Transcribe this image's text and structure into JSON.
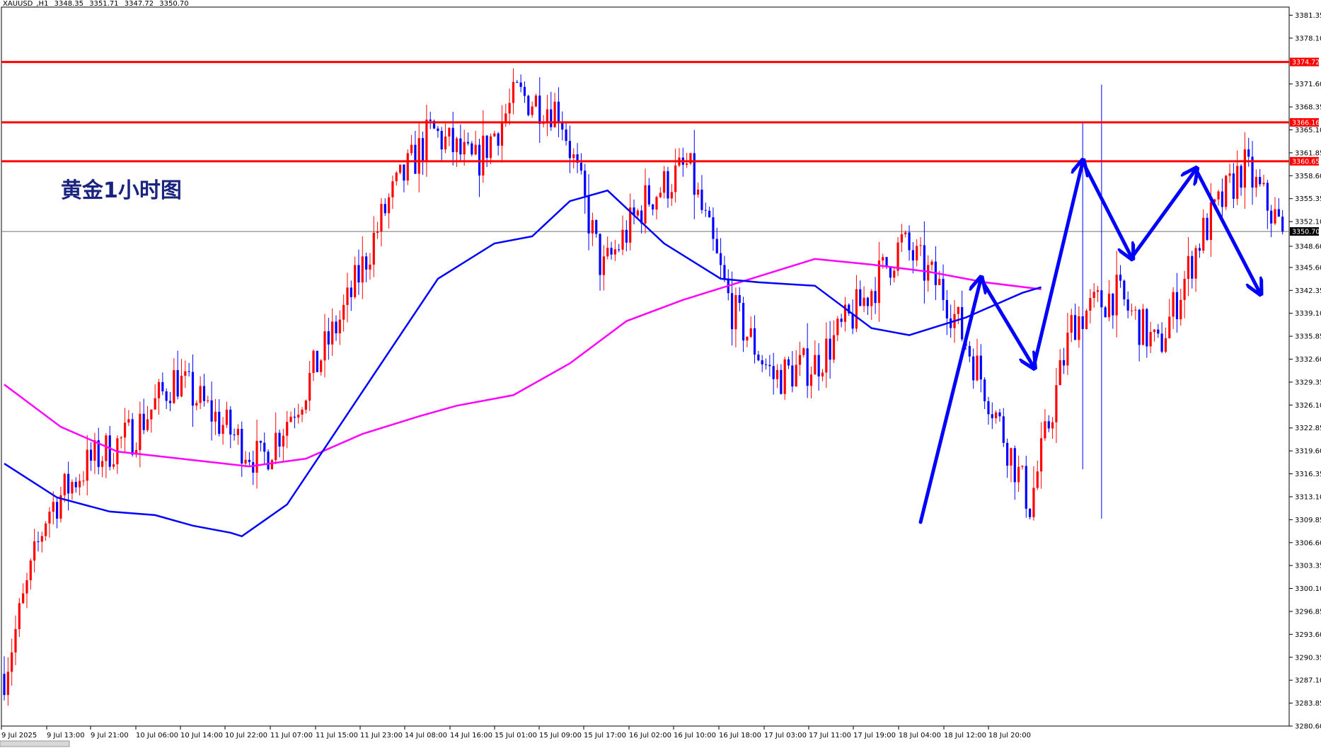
{
  "header": {
    "symbol": "XAUUSD_,H1",
    "open": "3348.35",
    "high": "3351.71",
    "low": "3347.72",
    "close": "3350.70"
  },
  "annotation_title": "黄金1小时图",
  "colors": {
    "bull": "#ff0000",
    "bear": "#0000ff",
    "ma_fast": "#0000ff",
    "ma_slow": "#ff00ff",
    "hline": "#ff0000",
    "arrow": "#0000ff",
    "background": "#ffffff",
    "axis": "#000000"
  },
  "chart_data": {
    "type": "candlestick",
    "ylim": [
      3280.6,
      3382.5
    ],
    "grid": false,
    "y_ticks": [
      "3381.35",
      "3378.10",
      "3374.72",
      "3371.60",
      "3368.35",
      "3366.16",
      "3365.10",
      "3361.85",
      "3360.65",
      "3358.60",
      "3355.35",
      "3352.10",
      "3350.70",
      "3348.60",
      "3345.60",
      "3342.35",
      "3339.10",
      "3335.85",
      "3332.60",
      "3329.35",
      "3326.10",
      "3322.85",
      "3319.60",
      "3316.35",
      "3313.10",
      "3309.85",
      "3306.60",
      "3303.35",
      "3300.10",
      "3296.85",
      "3293.60",
      "3290.35",
      "3287.10",
      "3283.85",
      "3280.60"
    ],
    "x_ticks": [
      "9 Jul 2025",
      "9 Jul 13:00",
      "9 Jul 21:00",
      "10 Jul 06:00",
      "10 Jul 14:00",
      "10 Jul 22:00",
      "11 Jul 07:00",
      "11 Jul 15:00",
      "11 Jul 23:00",
      "14 Jul 08:00",
      "14 Jul 16:00",
      "15 Jul 01:00",
      "15 Jul 09:00",
      "15 Jul 17:00",
      "16 Jul 02:00",
      "16 Jul 10:00",
      "16 Jul 18:00",
      "17 Jul 03:00",
      "17 Jul 11:00",
      "17 Jul 19:00",
      "18 Jul 04:00",
      "18 Jul 12:00",
      "18 Jul 20:00"
    ],
    "highlighted_levels": [
      {
        "value": 3374.72,
        "label": "3374.72"
      },
      {
        "value": 3366.16,
        "label": "3366.16"
      },
      {
        "value": 3360.65,
        "label": "3360.65"
      }
    ],
    "current_price": {
      "value": 3350.7,
      "label": "3350.70"
    },
    "key_closes": [
      3288,
      3311,
      3318,
      3322,
      3330,
      3324,
      3318,
      3328,
      3340,
      3355,
      3365,
      3360,
      3370,
      3368,
      3345,
      3355,
      3360,
      3340,
      3330,
      3332,
      3340,
      3349,
      3342,
      3328,
      3312,
      3338,
      3342,
      3334,
      3350,
      3360,
      3350
    ],
    "ma_fast_path": [
      [
        3317.8,
        0
      ],
      [
        3313,
        14
      ],
      [
        3311,
        28
      ],
      [
        3310.5,
        40
      ],
      [
        3309,
        50
      ],
      [
        3308,
        60
      ],
      [
        3307.5,
        63
      ],
      [
        3312,
        75
      ],
      [
        3320,
        85
      ],
      [
        3332,
        100
      ],
      [
        3344,
        115
      ],
      [
        3349,
        130
      ],
      [
        3350,
        140
      ],
      [
        3355,
        150
      ],
      [
        3356.5,
        160
      ],
      [
        3349,
        175
      ],
      [
        3344,
        190
      ],
      [
        3343.5,
        200
      ],
      [
        3343,
        215
      ],
      [
        3337,
        230
      ],
      [
        3336,
        240
      ],
      [
        3338.5,
        255
      ],
      [
        3342,
        270
      ],
      [
        3342.8,
        275
      ]
    ],
    "ma_slow_path": [
      [
        3329,
        0
      ],
      [
        3323,
        15
      ],
      [
        3319.5,
        30
      ],
      [
        3318.3,
        50
      ],
      [
        3317.4,
        65
      ],
      [
        3318.5,
        80
      ],
      [
        3322,
        95
      ],
      [
        3324.5,
        110
      ],
      [
        3326,
        120
      ],
      [
        3327.5,
        135
      ],
      [
        3332,
        150
      ],
      [
        3338,
        165
      ],
      [
        3341,
        180
      ],
      [
        3343.5,
        195
      ],
      [
        3346.8,
        215
      ],
      [
        3346,
        230
      ],
      [
        3345,
        245
      ],
      [
        3343.5,
        260
      ],
      [
        3342.5,
        275
      ]
    ],
    "arrows": [
      {
        "from": [
          243,
          3309.5
        ],
        "to": [
          259,
          3344
        ]
      },
      {
        "from": [
          259,
          3344
        ],
        "to": [
          273,
          3331.5
        ]
      },
      {
        "from": [
          273,
          3331.5
        ],
        "to": [
          286,
          3360.6
        ]
      },
      {
        "from": [
          286,
          3360.6
        ],
        "to": [
          299,
          3347
        ]
      },
      {
        "from": [
          299,
          3347
        ],
        "to": [
          316,
          3359.5
        ]
      },
      {
        "from": [
          316,
          3359.5
        ],
        "to": [
          333,
          3342
        ]
      }
    ]
  }
}
